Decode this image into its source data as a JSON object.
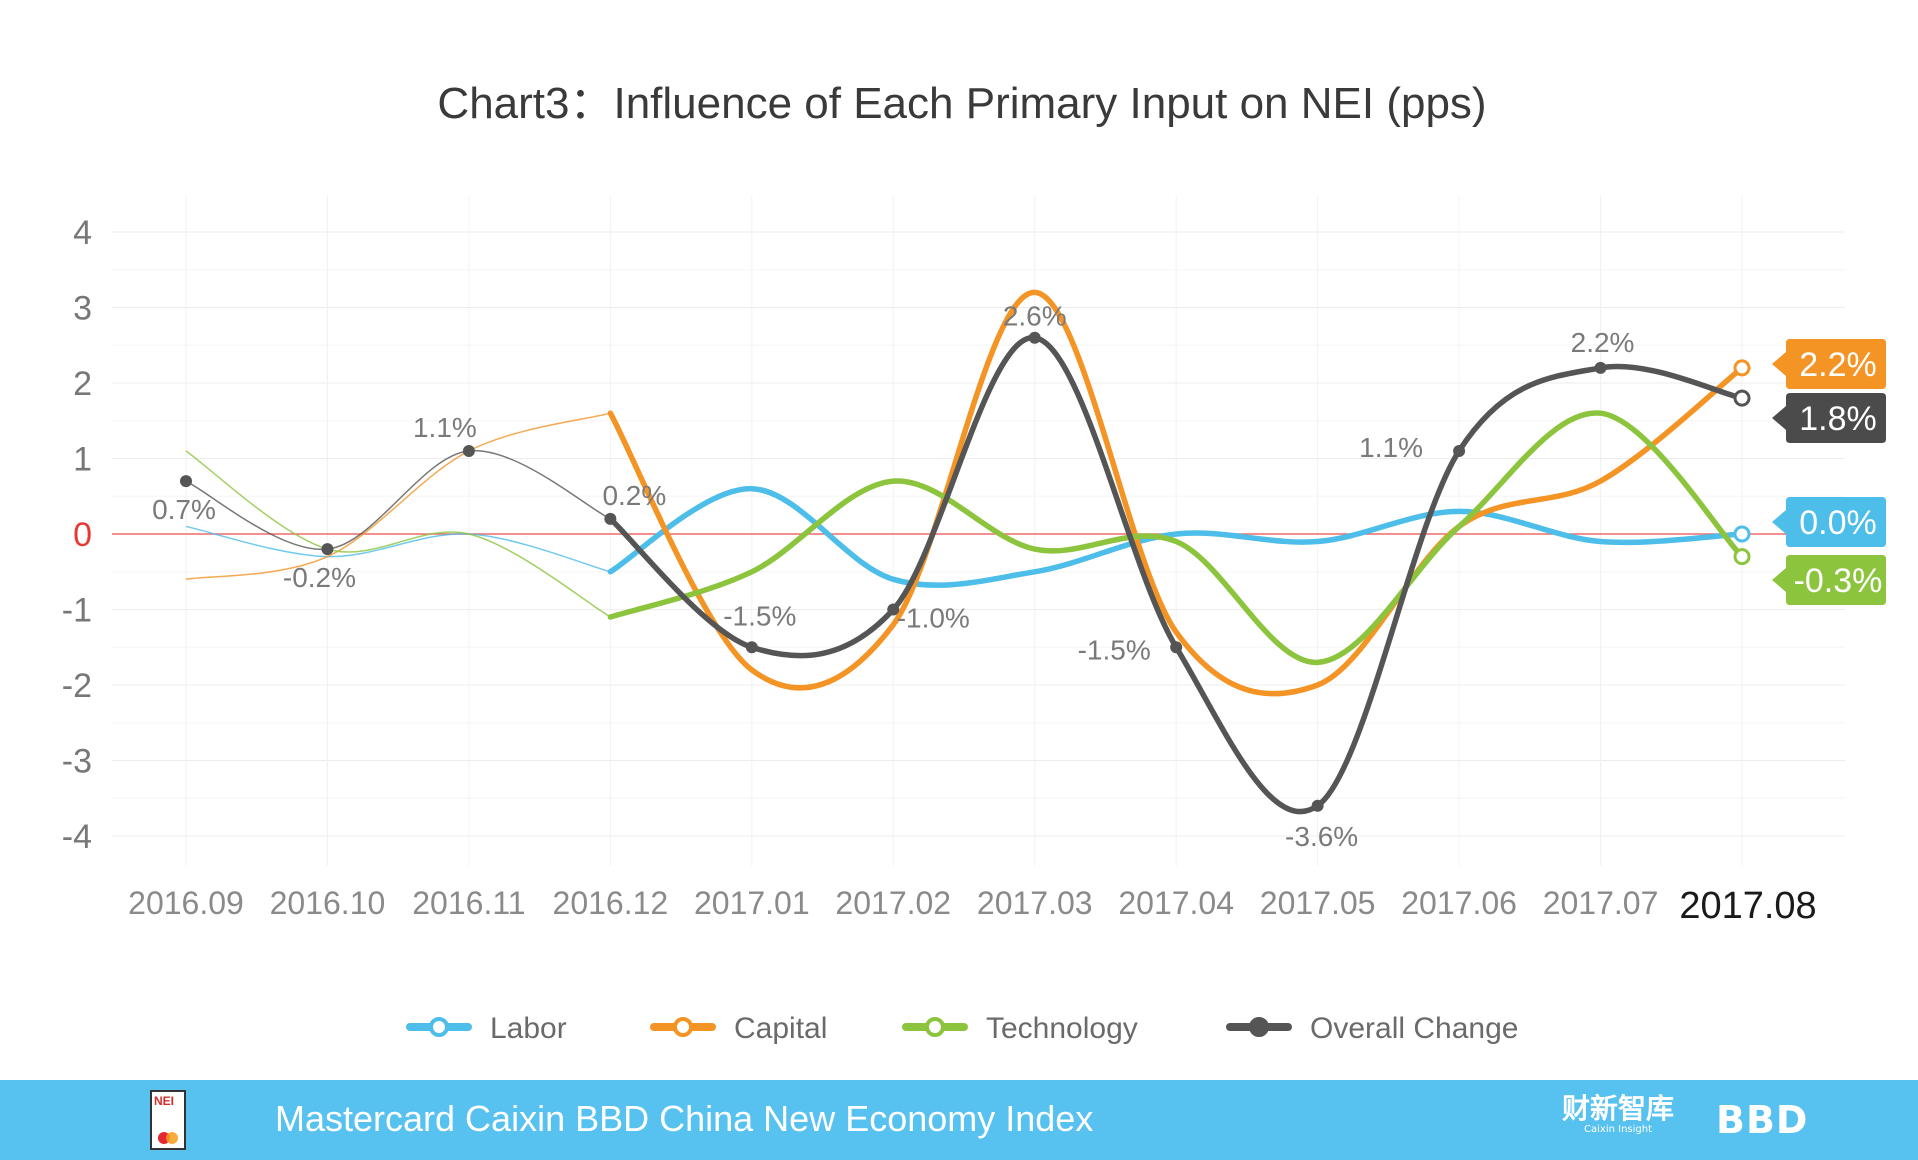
{
  "chart_data": {
    "type": "line",
    "title": "Chart3：Influence of Each Primary Input on NEI (pps)",
    "categories": [
      "2016.09",
      "2016.10",
      "2016.11",
      "2016.12",
      "2017.01",
      "2017.02",
      "2017.03",
      "2017.04",
      "2017.05",
      "2017.06",
      "2017.07",
      "2017.08"
    ],
    "ylim": [
      -4,
      4
    ],
    "yticks": [
      4,
      3,
      2,
      1,
      0,
      -1,
      -2,
      -3,
      -4
    ],
    "grid": true,
    "series": [
      {
        "name": "Labor",
        "color": "#4dbde9",
        "values": [
          0.1,
          -0.3,
          0.0,
          -0.5,
          0.6,
          -0.6,
          -0.5,
          0.0,
          -0.1,
          0.3,
          -0.1,
          0.0
        ]
      },
      {
        "name": "Capital",
        "color": "#f39425",
        "values": [
          -0.6,
          -0.3,
          1.1,
          1.6,
          -1.8,
          -1.2,
          3.2,
          -1.3,
          -2.0,
          0.1,
          0.7,
          2.2
        ]
      },
      {
        "name": "Technology",
        "color": "#8cc43e",
        "values": [
          1.1,
          -0.2,
          0.0,
          -1.1,
          -0.5,
          0.7,
          -0.2,
          -0.1,
          -1.7,
          0.1,
          1.6,
          -0.3
        ]
      },
      {
        "name": "Overall Change",
        "color": "#555555",
        "values": [
          0.7,
          -0.2,
          1.1,
          0.2,
          -1.5,
          -1.0,
          2.6,
          -1.5,
          -3.6,
          1.1,
          2.2,
          1.8
        ]
      }
    ],
    "point_labels": [
      "0.7%",
      "-0.2%",
      "1.1%",
      "0.2%",
      "-1.5%",
      "-1.0%",
      "2.6%",
      "-1.5%",
      "-3.6%",
      "1.1%",
      "2.2%",
      ""
    ],
    "end_tags": [
      {
        "series": "Capital",
        "text": "2.2%",
        "color": "#f39425"
      },
      {
        "series": "Overall Change",
        "text": "1.8%",
        "color": "#4b4b4b"
      },
      {
        "series": "Labor",
        "text": "0.0%",
        "color": "#4dbde9"
      },
      {
        "series": "Technology",
        "text": "-0.3%",
        "color": "#8cc43e"
      }
    ],
    "zero_line_color": "#f06a6a",
    "legend": [
      "Labor",
      "Capital",
      "Technology",
      "Overall Change"
    ],
    "legend_position": "bottom"
  },
  "footer": {
    "title": "Mastercard Caixin BBD China New Economy Index",
    "logo_text": "NEI",
    "caixin_cn": "财新智库",
    "caixin_en": "Caixin Insight",
    "bbd": "BBD"
  }
}
